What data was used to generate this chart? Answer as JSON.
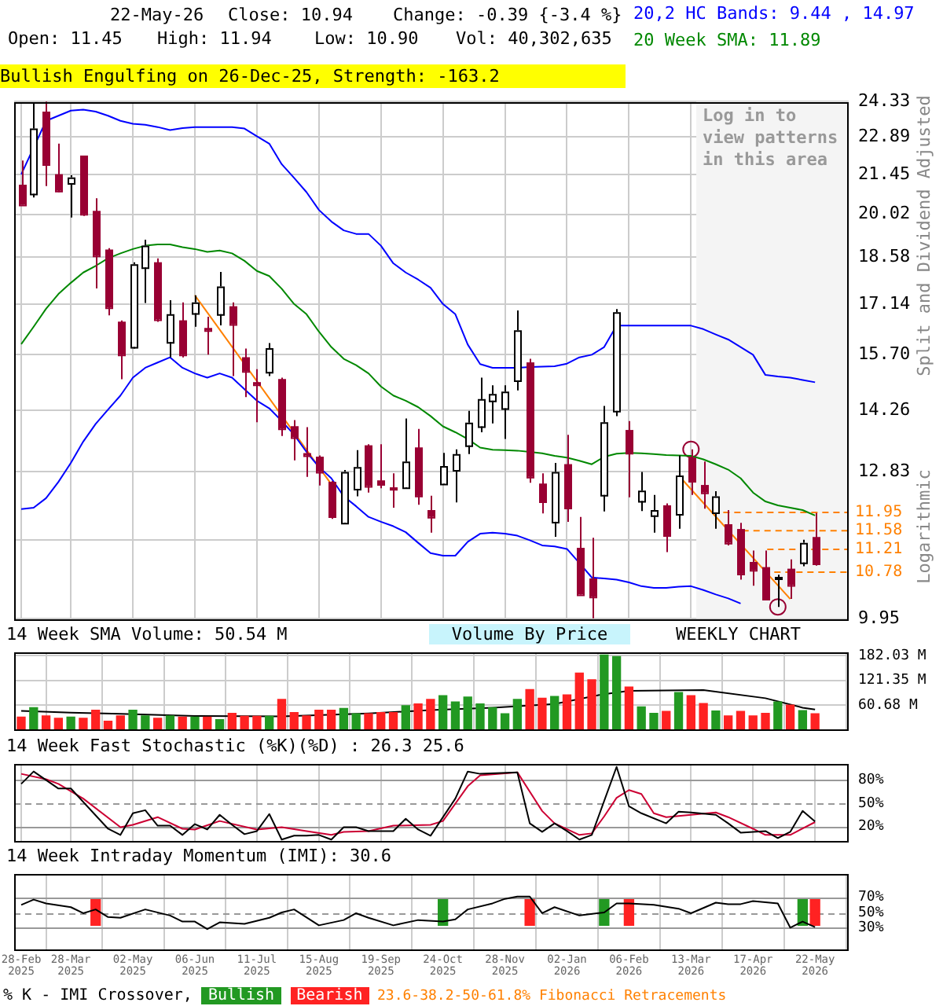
{
  "chart_data": [
    {
      "type": "candlestick",
      "subtitle": "Bullish Engulfing on 26-Dec-25, Strength: -163.2",
      "ylabel": "Split and Dividend Adjusted",
      "annotations": [
        "22-May-26",
        "Close: 10.94",
        "Change: -0.39 {-3.4 %}",
        "Open: 11.45",
        "High: 11.94",
        "Low: 10.90",
        "Vol: 40,302,635",
        "Logarithmic"
      ],
      "x": [
        "2025-02-28",
        "2025-03-07",
        "2025-03-14",
        "2025-03-21",
        "2025-03-28",
        "2025-04-04",
        "2025-04-11",
        "2025-04-18",
        "2025-04-25",
        "2025-05-02",
        "2025-05-09",
        "2025-05-16",
        "2025-05-23",
        "2025-05-30",
        "2025-06-06",
        "2025-06-13",
        "2025-06-20",
        "2025-06-27",
        "2025-07-04",
        "2025-07-11",
        "2025-07-18",
        "2025-07-25",
        "2025-08-01",
        "2025-08-08",
        "2025-08-15",
        "2025-08-22",
        "2025-08-29",
        "2025-09-05",
        "2025-09-12",
        "2025-09-19",
        "2025-09-26",
        "2025-10-03",
        "2025-10-10",
        "2025-10-17",
        "2025-10-24",
        "2025-10-31",
        "2025-11-07",
        "2025-11-14",
        "2025-11-21",
        "2025-11-28",
        "2025-12-05",
        "2025-12-12",
        "2025-12-19",
        "2025-12-26",
        "2026-01-02",
        "2026-01-09",
        "2026-01-16",
        "2026-01-23",
        "2026-01-30",
        "2026-02-06",
        "2026-02-13",
        "2026-02-20",
        "2026-02-27",
        "2026-03-06",
        "2026-03-13",
        "2026-03-20",
        "2026-03-27",
        "2026-04-03",
        "2026-04-10",
        "2026-04-17",
        "2026-04-24",
        "2026-05-01",
        "2026-05-08",
        "2026-05-15",
        "2026-05-22"
      ],
      "ohlc": [
        [
          21.07,
          21.97,
          20.35,
          20.35
        ],
        [
          20.74,
          24.27,
          20.61,
          23.22
        ],
        [
          23.91,
          24.33,
          21.02,
          21.83
        ],
        [
          21.45,
          22.62,
          20.8,
          20.85
        ],
        [
          21.13,
          21.42,
          19.91,
          21.34
        ],
        [
          22.16,
          22.16,
          19.96,
          20.03
        ],
        [
          20.13,
          20.58,
          17.61,
          18.64
        ],
        [
          18.83,
          18.88,
          16.81,
          17.04
        ],
        [
          16.62,
          16.66,
          15.05,
          15.7
        ],
        [
          15.91,
          18.42,
          15.87,
          18.36
        ],
        [
          18.26,
          19.16,
          17.17,
          18.96
        ],
        [
          18.42,
          18.55,
          16.62,
          16.69
        ],
        [
          16.05,
          17.25,
          15.63,
          16.84
        ],
        [
          16.66,
          17.19,
          15.63,
          15.7
        ],
        [
          16.87,
          17.4,
          16.48,
          17.19
        ],
        [
          16.44,
          16.77,
          15.7,
          16.38
        ],
        [
          16.84,
          18.12,
          16.52,
          17.67
        ],
        [
          17.07,
          17.19,
          15.13,
          16.55
        ],
        [
          15.63,
          15.87,
          14.59,
          15.26
        ],
        [
          14.97,
          15.31,
          13.97,
          14.91
        ],
        [
          15.24,
          16.02,
          15.13,
          15.88
        ],
        [
          15.05,
          15.09,
          13.64,
          13.82
        ],
        [
          13.87,
          14.02,
          13.08,
          13.61
        ],
        [
          13.24,
          13.85,
          12.71,
          13.19
        ],
        [
          13.16,
          13.19,
          12.52,
          12.82
        ],
        [
          12.6,
          12.62,
          11.82,
          11.87
        ],
        [
          11.74,
          12.86,
          11.71,
          12.82
        ],
        [
          12.45,
          13.31,
          12.29,
          12.93
        ],
        [
          13.42,
          13.45,
          12.37,
          12.51
        ],
        [
          12.63,
          13.45,
          12.46,
          12.55
        ],
        [
          12.48,
          12.79,
          12.05,
          12.45
        ],
        [
          12.48,
          14.06,
          12.46,
          13.05
        ],
        [
          13.37,
          13.81,
          12.11,
          12.3
        ],
        [
          12.0,
          12.3,
          11.54,
          11.86
        ],
        [
          12.56,
          13.25,
          12.55,
          12.95
        ],
        [
          12.86,
          13.33,
          12.16,
          13.22
        ],
        [
          13.42,
          14.25,
          13.22,
          13.96
        ],
        [
          13.87,
          15.09,
          13.73,
          14.54
        ],
        [
          14.5,
          14.89,
          13.94,
          14.67
        ],
        [
          14.31,
          14.89,
          13.57,
          14.73
        ],
        [
          15.02,
          16.95,
          14.76,
          16.38
        ],
        [
          15.49,
          15.59,
          12.58,
          12.71
        ],
        [
          12.56,
          12.79,
          11.93,
          12.18
        ],
        [
          11.76,
          13.02,
          11.46,
          12.82
        ],
        [
          12.99,
          13.67,
          11.76,
          12.05
        ],
        [
          11.24,
          11.86,
          10.37,
          10.37
        ],
        [
          10.66,
          11.44,
          9.95,
          10.33
        ],
        [
          12.32,
          14.37,
          11.97,
          13.97
        ],
        [
          14.25,
          16.99,
          14.12,
          16.9
        ],
        [
          13.78,
          14.0,
          12.27,
          13.25
        ],
        [
          12.19,
          12.82,
          11.98,
          12.41
        ],
        [
          11.89,
          12.32,
          11.54,
          12.0
        ],
        [
          12.1,
          12.14,
          11.16,
          11.49
        ],
        [
          11.92,
          13.19,
          11.62,
          12.74
        ],
        [
          13.14,
          13.33,
          12.32,
          12.62
        ],
        [
          12.53,
          13.05,
          12.03,
          12.37
        ],
        [
          11.95,
          12.4,
          11.62,
          12.29
        ],
        [
          11.71,
          12.0,
          11.29,
          11.34
        ],
        [
          11.61,
          11.74,
          10.64,
          10.75
        ],
        [
          10.97,
          11.19,
          10.53,
          10.82
        ],
        [
          10.87,
          11.19,
          10.29,
          10.29
        ],
        [
          10.66,
          10.73,
          10.15,
          10.69
        ],
        [
          10.84,
          11.02,
          10.29,
          10.54
        ],
        [
          10.96,
          11.4,
          10.89,
          11.34
        ],
        [
          11.45,
          11.94,
          10.9,
          10.94
        ]
      ],
      "colors": [
        "#990033",
        "#ffffff",
        "#990033",
        "#990033",
        "#ffffff",
        "#990033",
        "#990033",
        "#990033",
        "#990033",
        "#ffffff",
        "#ffffff",
        "#990033",
        "#ffffff",
        "#990033",
        "#ffffff",
        "#990033",
        "#ffffff",
        "#990033",
        "#990033",
        "#990033",
        "#ffffff",
        "#990033",
        "#990033",
        "#990033",
        "#990033",
        "#990033",
        "#ffffff",
        "#ffffff",
        "#990033",
        "#990033",
        "#990033",
        "#ffffff",
        "#990033",
        "#990033",
        "#ffffff",
        "#ffffff",
        "#ffffff",
        "#ffffff",
        "#ffffff",
        "#ffffff",
        "#ffffff",
        "#990033",
        "#990033",
        "#ffffff",
        "#990033",
        "#990033",
        "#990033",
        "#ffffff",
        "#ffffff",
        "#990033",
        "#ffffff",
        "#ffffff",
        "#990033",
        "#ffffff",
        "#990033",
        "#990033",
        "#ffffff",
        "#990033",
        "#990033",
        "#990033",
        "#990033",
        "#ffffff",
        "#990033",
        "#ffffff",
        "#990033"
      ],
      "series": [
        {
          "type": "line",
          "name": "20,2 HC Bands: 9.44 , 14.97",
          "color": "#0000ff",
          "values": [
            21.45,
            null,
            23.53,
            23.74,
            23.95,
            23.99,
            23.91,
            23.74,
            23.53,
            23.41,
            23.37,
            23.28,
            23.16,
            23.24,
            23.28,
            23.28,
            23.28,
            23.28,
            23.22,
            22.91,
            22.62,
            21.83,
            21.32,
            20.8,
            20.17,
            19.77,
            19.47,
            19.35,
            19.35,
            18.96,
            18.39,
            18.1,
            17.88,
            17.63,
            17.14,
            16.84,
            15.98,
            15.45,
            15.35,
            15.35,
            15.35,
            15.37,
            15.38,
            15.39,
            15.46,
            15.63,
            15.7,
            15.91,
            16.51,
            16.51,
            16.51,
            16.51,
            16.51,
            16.51,
            16.51,
            16.41,
            16.26,
            16.12,
            15.91,
            15.7,
            15.16,
            15.12,
            15.09,
            15.03,
            14.97
          ]
        },
        {
          "type": "line",
          "color": "#0000ff",
          "values": [
            12.02,
            12.05,
            12.25,
            12.6,
            13.02,
            13.51,
            13.93,
            14.28,
            14.63,
            15.09,
            15.35,
            15.49,
            15.63,
            15.35,
            15.2,
            15.09,
            15.2,
            15.09,
            14.79,
            14.5,
            14.31,
            14.0,
            13.67,
            13.27,
            12.93,
            12.68,
            12.29,
            12.08,
            11.86,
            11.76,
            11.67,
            11.55,
            11.34,
            11.14,
            11.09,
            11.09,
            11.36,
            11.52,
            11.54,
            11.52,
            11.48,
            11.39,
            11.29,
            11.27,
            11.22,
            10.95,
            10.68,
            10.66,
            10.64,
            10.59,
            10.52,
            10.49,
            10.49,
            10.51,
            10.52,
            10.45,
            10.37,
            10.3,
            10.21,
            null,
            null,
            null,
            null,
            null,
            null
          ]
        },
        {
          "type": "line",
          "name": "20 Week SMA: 11.89",
          "color": "#008800",
          "values": [
            15.99,
            16.48,
            17.0,
            17.44,
            17.78,
            18.1,
            18.31,
            18.55,
            18.71,
            18.85,
            18.96,
            19.0,
            19.0,
            18.91,
            18.85,
            18.76,
            18.8,
            18.71,
            18.47,
            18.15,
            17.99,
            17.6,
            17.14,
            16.84,
            16.34,
            15.91,
            15.59,
            15.42,
            15.2,
            14.86,
            14.63,
            14.5,
            14.34,
            14.12,
            13.87,
            13.73,
            13.57,
            13.37,
            13.32,
            13.31,
            13.3,
            13.27,
            13.24,
            13.18,
            13.14,
            13.07,
            12.99,
            13.16,
            13.23,
            13.25,
            13.24,
            13.22,
            13.2,
            13.19,
            13.18,
            13.1,
            12.99,
            12.87,
            12.68,
            12.37,
            12.18,
            12.1,
            12.05,
            12.0,
            11.89
          ]
        },
        {
          "type": "line",
          "color": "#ff8000",
          "x": [
            "2025-06-06",
            "2025-08-22"
          ],
          "values": [
            17.4,
            12.55
          ]
        },
        {
          "type": "line",
          "color": "#ff8000",
          "x": [
            "2026-03-06",
            "2026-05-08"
          ],
          "values": [
            12.74,
            10.29
          ]
        },
        {
          "type": "scatter",
          "marker": "circle",
          "color": "#990033",
          "x": [
            "2026-03-13",
            "2026-05-01"
          ],
          "values": [
            13.33,
            10.15
          ]
        },
        {
          "type": "line",
          "color": "#ff8000",
          "line_style": "dashed",
          "x": [
            "2026-03-25",
            "2026-06-10"
          ],
          "values": [
            11.95,
            11.95
          ],
          "value_labels": [
            null,
            "11.95"
          ]
        },
        {
          "type": "line",
          "color": "#ff8000",
          "line_style": "dashed",
          "x": [
            "2026-04-11",
            "2026-06-10"
          ],
          "values": [
            11.58,
            11.58
          ],
          "value_labels": [
            null,
            "11.58"
          ]
        },
        {
          "type": "line",
          "color": "#ff8000",
          "line_style": "dashed",
          "x": [
            "2026-04-25",
            "2026-06-10"
          ],
          "values": [
            11.21,
            11.21
          ],
          "value_labels": [
            null,
            "11.21"
          ]
        },
        {
          "type": "line",
          "color": "#ff8000",
          "line_style": "dashed",
          "x": [
            "2026-04-29",
            "2026-06-10"
          ],
          "values": [
            10.78,
            10.78
          ],
          "value_labels": [
            null,
            "10.78"
          ]
        }
      ],
      "bands": [
        {
          "axis": "x",
          "from": "2026-03-16",
          "to": "2026-06-10",
          "label": "Log in to view patterns in this area",
          "color": "#f4f4f4"
        }
      ],
      "log": true,
      "ylim": [
        9.95,
        24.33
      ],
      "yticks": [
        9.95,
        {
          "value": 11.39,
          "label": null
        },
        12.83,
        14.26,
        {
          "value": 15.7,
          "label": "15.70"
        },
        17.14,
        18.58,
        20.02,
        21.45,
        22.89,
        24.33
      ],
      "xlim": [
        "2025-02-24",
        "2026-06-10"
      ],
      "xticks": [
        {
          "value": "2025-02-28",
          "label": null
        },
        {
          "value": "2025-03-28",
          "label": null
        },
        {
          "value": "2025-05-02",
          "label": null
        },
        {
          "value": "2025-06-06",
          "label": null
        },
        {
          "value": "2025-07-11",
          "label": null
        },
        {
          "value": "2025-08-15",
          "label": null
        },
        {
          "value": "2025-09-19",
          "label": null
        },
        {
          "value": "2025-10-24",
          "label": null
        },
        {
          "value": "2025-11-28",
          "label": null
        },
        {
          "value": "2026-01-02",
          "label": null
        },
        {
          "value": "2026-02-06",
          "label": null
        },
        {
          "value": "2026-03-13",
          "label": null
        },
        {
          "value": "2026-04-17",
          "label": null
        },
        {
          "value": "2026-05-22",
          "label": null
        }
      ],
      "tick_labels": "y",
      "grid": true,
      "legend": "top right"
    },
    {
      "type": "bar",
      "title": "14 Week SMA Volume: 50.54 M",
      "annotations": [
        "Volume By Price",
        "WEEKLY CHART"
      ],
      "x": [
        "2025-02-28",
        "2025-03-07",
        "2025-03-14",
        "2025-03-21",
        "2025-03-28",
        "2025-04-04",
        "2025-04-11",
        "2025-04-18",
        "2025-04-25",
        "2025-05-02",
        "2025-05-09",
        "2025-05-16",
        "2025-05-23",
        "2025-05-30",
        "2025-06-06",
        "2025-06-13",
        "2025-06-20",
        "2025-06-27",
        "2025-07-04",
        "2025-07-11",
        "2025-07-18",
        "2025-07-25",
        "2025-08-01",
        "2025-08-08",
        "2025-08-15",
        "2025-08-22",
        "2025-08-29",
        "2025-09-05",
        "2025-09-12",
        "2025-09-19",
        "2025-09-26",
        "2025-10-03",
        "2025-10-10",
        "2025-10-17",
        "2025-10-24",
        "2025-10-31",
        "2025-11-07",
        "2025-11-14",
        "2025-11-21",
        "2025-11-28",
        "2025-12-05",
        "2025-12-12",
        "2025-12-19",
        "2025-12-26",
        "2026-01-02",
        "2026-01-09",
        "2026-01-16",
        "2026-01-23",
        "2026-01-30",
        "2026-02-06",
        "2026-02-13",
        "2026-02-20",
        "2026-02-27",
        "2026-03-06",
        "2026-03-13",
        "2026-03-20",
        "2026-03-27",
        "2026-04-03",
        "2026-04-10",
        "2026-04-17",
        "2026-04-24",
        "2026-05-01",
        "2026-05-08",
        "2026-05-15",
        "2026-05-22"
      ],
      "series": [
        {
          "type": "bar",
          "values": [
            32,
            55,
            35,
            29,
            32,
            29,
            49,
            22,
            35,
            49,
            35,
            29,
            35,
            32,
            32,
            32,
            26,
            41,
            34,
            34,
            34,
            75,
            43,
            35,
            49,
            49,
            53,
            40,
            40,
            43,
            43,
            60,
            64,
            75,
            84,
            69,
            81,
            64,
            55,
            40,
            75,
            99,
            78,
            82,
            86,
            139,
            123,
            183,
            179,
            105,
            57,
            41,
            46,
            92,
            84,
            65,
            47,
            35,
            46,
            35,
            41,
            69,
            61,
            48,
            40.3
          ],
          "colors": [
            "#ff2222",
            "#229922",
            "#ff2222",
            "#ff2222",
            "#229922",
            "#ff2222",
            "#ff2222",
            "#ff2222",
            "#ff2222",
            "#229922",
            "#229922",
            "#ff2222",
            "#229922",
            "#ff2222",
            "#229922",
            "#ff2222",
            "#229922",
            "#ff2222",
            "#ff2222",
            "#ff2222",
            "#229922",
            "#ff2222",
            "#ff2222",
            "#ff2222",
            "#ff2222",
            "#ff2222",
            "#229922",
            "#229922",
            "#ff2222",
            "#ff2222",
            "#ff2222",
            "#229922",
            "#ff2222",
            "#ff2222",
            "#229922",
            "#229922",
            "#229922",
            "#229922",
            "#229922",
            "#229922",
            "#229922",
            "#ff2222",
            "#ff2222",
            "#229922",
            "#ff2222",
            "#ff2222",
            "#ff2222",
            "#229922",
            "#229922",
            "#ff2222",
            "#229922",
            "#229922",
            "#ff2222",
            "#229922",
            "#ff2222",
            "#ff2222",
            "#229922",
            "#ff2222",
            "#ff2222",
            "#ff2222",
            "#ff2222",
            "#229922",
            "#ff2222",
            "#229922",
            "#ff2222"
          ]
        },
        {
          "type": "line",
          "color": "#000000",
          "x": [
            "2025-02-28",
            "2025-03-28",
            "2025-04-25",
            "2025-06-06",
            "2025-07-25",
            "2025-09-12",
            "2025-10-17",
            "2025-11-21",
            "2025-12-26",
            "2026-01-23",
            "2026-02-06",
            "2026-03-20",
            "2026-04-24",
            "2026-05-15",
            "2026-05-22"
          ],
          "values": [
            47,
            43,
            40,
            35,
            34,
            41,
            49,
            55,
            64,
            88,
            96,
            98,
            78,
            55,
            50.54
          ]
        }
      ],
      "ylim": [
        0,
        188
      ],
      "yticks": [
        {
          "value": 60.68,
          "label": "60.68 M"
        },
        {
          "value": 121.35,
          "label": "121.35 M"
        },
        {
          "value": 182.03,
          "label": "182.03 M"
        }
      ],
      "xlim": [
        "2025-02-24",
        "2026-06-10"
      ],
      "xticks": [
        {
          "value": "2025-02-28",
          "label": null
        },
        {
          "value": "2025-03-28",
          "label": null
        },
        {
          "value": "2025-05-02",
          "label": null
        },
        {
          "value": "2025-06-06",
          "label": null
        },
        {
          "value": "2025-07-11",
          "label": null
        },
        {
          "value": "2025-08-15",
          "label": null
        },
        {
          "value": "2025-09-19",
          "label": null
        },
        {
          "value": "2025-10-24",
          "label": null
        },
        {
          "value": "2025-11-28",
          "label": null
        },
        {
          "value": "2026-01-02",
          "label": null
        },
        {
          "value": "2026-02-06",
          "label": null
        },
        {
          "value": "2026-03-13",
          "label": null
        },
        {
          "value": "2026-04-17",
          "label": null
        },
        {
          "value": "2026-05-22",
          "label": null
        }
      ],
      "tick_labels": "y",
      "grid": true
    },
    {
      "type": "line",
      "title": "14 Week Fast Stochastic (%K)(%D) : 26.3 25.6",
      "series": [
        {
          "color": "#000000",
          "x": [
            "2025-02-28",
            "2025-03-07",
            "2025-03-21",
            "2025-03-28",
            "2025-04-18",
            "2025-04-25",
            "2025-05-02",
            "2025-05-09",
            "2025-05-16",
            "2025-05-23",
            "2025-05-30",
            "2025-06-06",
            "2025-06-13",
            "2025-06-20",
            "2025-06-27",
            "2025-07-04",
            "2025-07-11",
            "2025-07-18",
            "2025-07-25",
            "2025-08-01",
            "2025-08-08",
            "2025-08-15",
            "2025-08-22",
            "2025-08-29",
            "2025-09-05",
            "2025-09-12",
            "2025-09-26",
            "2025-10-03",
            "2025-10-10",
            "2025-10-17",
            "2025-10-31",
            "2025-11-07",
            "2025-11-14",
            "2025-12-05",
            "2025-12-12",
            "2025-12-19",
            "2025-12-26",
            "2026-01-02",
            "2026-01-09",
            "2026-01-16",
            "2026-01-30",
            "2026-02-06",
            "2026-02-13",
            "2026-02-27",
            "2026-03-06",
            "2026-03-13",
            "2026-03-27",
            "2026-04-03",
            "2026-04-10",
            "2026-04-24",
            "2026-05-01",
            "2026-05-08",
            "2026-05-15",
            "2026-05-22"
          ],
          "values": [
            75,
            91,
            69,
            69,
            17,
            9,
            37,
            41,
            21,
            21,
            9,
            23,
            16,
            35,
            22,
            10,
            14,
            36,
            3,
            8,
            8,
            9,
            3,
            19,
            19,
            14,
            14,
            30,
            16,
            8,
            56,
            91,
            88,
            90,
            24,
            13,
            24,
            14,
            3,
            9,
            97,
            46,
            37,
            24,
            39,
            38,
            35,
            24,
            12,
            14,
            5,
            13,
            40,
            26.3
          ]
        },
        {
          "color": "#cc0033",
          "x": [
            "2025-02-28",
            "2025-03-14",
            "2025-03-21",
            "2025-04-04",
            "2025-04-25",
            "2025-05-02",
            "2025-05-16",
            "2025-05-30",
            "2025-06-06",
            "2025-06-20",
            "2025-07-11",
            "2025-07-25",
            "2025-08-08",
            "2025-08-22",
            "2025-08-29",
            "2025-09-12",
            "2025-09-26",
            "2025-10-17",
            "2025-10-24",
            "2025-11-07",
            "2025-11-14",
            "2025-12-05",
            "2025-12-19",
            "2025-12-26",
            "2026-01-09",
            "2026-01-16",
            "2026-01-23",
            "2026-01-30",
            "2026-02-06",
            "2026-02-13",
            "2026-02-20",
            "2026-02-27",
            "2026-03-13",
            "2026-03-27",
            "2026-04-03",
            "2026-04-17",
            "2026-04-24",
            "2026-05-08",
            "2026-05-22"
          ],
          "values": [
            88,
            81,
            75,
            56,
            19,
            22,
            32,
            17,
            16,
            27,
            16,
            19,
            14,
            9,
            13,
            14,
            21,
            22,
            27,
            72,
            86,
            90,
            40,
            24,
            9,
            11,
            33,
            57,
            67,
            62,
            37,
            32,
            35,
            38,
            32,
            17,
            9,
            9,
            25.6
          ]
        }
      ],
      "ref_lines": [
        {
          "axis": "y",
          "value": 80,
          "color": "#999999"
        },
        {
          "axis": "y",
          "value": 50,
          "color": "#999999",
          "line_style": "dashed"
        },
        {
          "axis": "y",
          "value": 20,
          "color": "#999999"
        }
      ],
      "ylim": [
        0,
        100
      ],
      "yticks": [
        {
          "value": 20,
          "label": "20%"
        },
        {
          "value": 50,
          "label": "50%"
        },
        {
          "value": 80,
          "label": "80%"
        }
      ],
      "xlim": [
        "2025-02-24",
        "2026-06-10"
      ],
      "xticks": [
        {
          "value": "2025-02-28",
          "label": null
        },
        {
          "value": "2025-03-28",
          "label": null
        },
        {
          "value": "2025-05-02",
          "label": null
        },
        {
          "value": "2025-06-06",
          "label": null
        },
        {
          "value": "2025-07-11",
          "label": null
        },
        {
          "value": "2025-08-15",
          "label": null
        },
        {
          "value": "2025-09-19",
          "label": null
        },
        {
          "value": "2025-10-24",
          "label": null
        },
        {
          "value": "2025-11-28",
          "label": null
        },
        {
          "value": "2026-01-02",
          "label": null
        },
        {
          "value": "2026-02-06",
          "label": null
        },
        {
          "value": "2026-03-13",
          "label": null
        },
        {
          "value": "2026-04-17",
          "label": null
        },
        {
          "value": "2026-05-22",
          "label": null
        }
      ],
      "tick_labels": "y",
      "grid": "x"
    },
    {
      "type": "line",
      "title": "14 Week Intraday Momentum (IMI): 30.6",
      "legend_title": "% K - IMI Crossover,",
      "annotations": [
        "23.6-38.2-50-61.8% Fibonacci Retracements"
      ],
      "series": [
        {
          "color": "#000000",
          "x": [
            "2025-02-28",
            "2025-03-07",
            "2025-03-14",
            "2025-03-28",
            "2025-04-04",
            "2025-04-11",
            "2025-04-18",
            "2025-04-25",
            "2025-05-09",
            "2025-05-23",
            "2025-05-30",
            "2025-06-06",
            "2025-06-13",
            "2025-06-20",
            "2025-07-04",
            "2025-07-18",
            "2025-07-25",
            "2025-08-01",
            "2025-08-15",
            "2025-08-29",
            "2025-09-05",
            "2025-09-12",
            "2025-09-26",
            "2025-10-10",
            "2025-10-24",
            "2025-10-31",
            "2025-11-07",
            "2025-11-21",
            "2025-11-28",
            "2025-12-05",
            "2025-12-12",
            "2025-12-19",
            "2025-12-26",
            "2026-01-09",
            "2026-01-23",
            "2026-01-30",
            "2026-02-06",
            "2026-02-20",
            "2026-03-06",
            "2026-03-13",
            "2026-03-27",
            "2026-04-03",
            "2026-04-10",
            "2026-04-17",
            "2026-05-01",
            "2026-05-08",
            "2026-05-15",
            "2026-05-22"
          ],
          "values": [
            60,
            67,
            62,
            57,
            49,
            54,
            44,
            43,
            54,
            46,
            38,
            38,
            28,
            37,
            35,
            43,
            50,
            54,
            33,
            40,
            49,
            43,
            33,
            40,
            38,
            41,
            54,
            62,
            68,
            71,
            71,
            49,
            57,
            46,
            50,
            62,
            62,
            60,
            55,
            49,
            63,
            61,
            61,
            65,
            62,
            30,
            38,
            30.6
          ]
        },
        {
          "type": "bar",
          "name": "Bullish",
          "color": "#229922",
          "x": [
            "2025-10-24",
            "2026-01-23",
            "2026-05-15"
          ],
          "base": [
            33,
            33,
            33
          ],
          "values": [
            34,
            34,
            34
          ]
        },
        {
          "type": "bar",
          "name": "Bearish",
          "color": "#ff2222",
          "x": [
            "2025-04-11",
            "2025-12-12",
            "2026-02-06",
            "2026-05-22"
          ],
          "base": [
            33,
            33,
            33,
            33
          ],
          "values": [
            34,
            34,
            34,
            34
          ]
        }
      ],
      "ref_lines": [
        {
          "axis": "y",
          "value": 70,
          "color": "#999999"
        },
        {
          "axis": "y",
          "value": 50,
          "color": "#999999",
          "line_style": "dashed"
        },
        {
          "axis": "y",
          "value": 30,
          "color": "#999999"
        }
      ],
      "ylim": [
        0,
        100
      ],
      "yticks": [
        {
          "value": 30,
          "label": "30%"
        },
        {
          "value": 50,
          "label": "50%"
        },
        {
          "value": 70,
          "label": "70%"
        }
      ],
      "xlim": [
        "2025-02-24",
        "2026-06-10"
      ],
      "xticks": [
        {
          "value": "2025-02-28",
          "label": "28-Feb\n2025"
        },
        {
          "value": "2025-03-28",
          "label": "28-Mar\n2025"
        },
        {
          "value": "2025-05-02",
          "label": "02-May\n2025"
        },
        {
          "value": "2025-06-06",
          "label": "06-Jun\n2025"
        },
        {
          "value": "2025-07-11",
          "label": "11-Jul\n2025"
        },
        {
          "value": "2025-08-15",
          "label": "15-Aug\n2025"
        },
        {
          "value": "2025-09-19",
          "label": "19-Sep\n2025"
        },
        {
          "value": "2025-10-24",
          "label": "24-Oct\n2025"
        },
        {
          "value": "2025-11-28",
          "label": "28-Nov\n2025"
        },
        {
          "value": "2026-01-02",
          "label": "02-Jan\n2026"
        },
        {
          "value": "2026-02-06",
          "label": "06-Feb\n2026"
        },
        {
          "value": "2026-03-13",
          "label": "13-Mar\n2026"
        },
        {
          "value": "2026-04-17",
          "label": "17-Apr\n2026"
        },
        {
          "value": "2026-05-22",
          "label": "22-May\n2026"
        }
      ],
      "grid": "x",
      "legend": "bottom"
    }
  ]
}
